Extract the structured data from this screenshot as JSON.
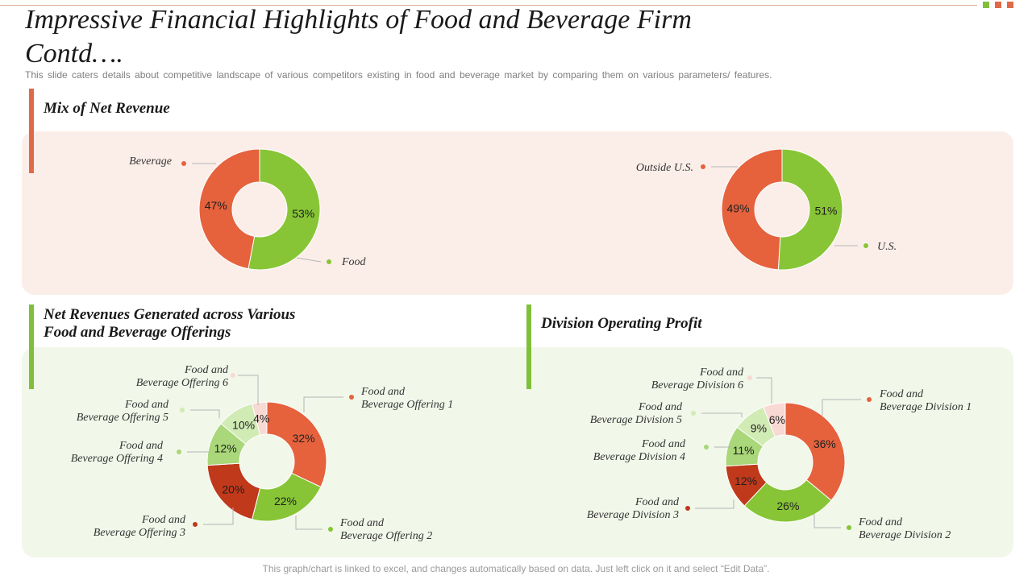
{
  "page": {
    "title": "Impressive Financial Highlights of Food and Beverage Firm Contd….",
    "subtitle": "This slide caters details about competitive landscape of various competitors existing in food and beverage  market by comparing them on various  parameters/ features.",
    "footer": "This graph/chart is linked to excel,  and changes automatically based on data. Just left click on it and select “Edit Data”."
  },
  "sections": {
    "mix": {
      "title": "Mix of Net Revenue"
    },
    "offerings": {
      "title_line1": "Net Revenues Generated across Various",
      "title_line2": "Food and Beverage Offerings"
    },
    "division": {
      "title": "Division Operating Profit"
    }
  },
  "colors": {
    "orange": "#e5623d",
    "green": "#87c536",
    "dark_red": "#c0391b",
    "light_green": "#a9d77a",
    "pale_green": "#d1ebb4",
    "pale_pink": "#f8d9d3",
    "accent_orange": "#e06a48",
    "accent_green": "#7fbf3a",
    "top_panel": "#fbeee9",
    "bottom_panel": "#f1f7e9"
  },
  "chart_data": [
    {
      "type": "pie",
      "title": "Mix of Net Revenue",
      "labels": [
        "Food",
        "Beverage"
      ],
      "values": [
        53,
        47
      ],
      "value_labels": [
        "53%",
        "47%"
      ],
      "label_lines": [
        [
          "Food"
        ],
        [
          "Beverage"
        ]
      ],
      "colors": [
        "#87c536",
        "#e5623d"
      ]
    },
    {
      "type": "pie",
      "title": "Mix of Net Revenue",
      "labels": [
        "U.S.",
        "Outside U.S."
      ],
      "values": [
        51,
        49
      ],
      "value_labels": [
        "51%",
        "49%"
      ],
      "label_lines": [
        [
          "U.S."
        ],
        [
          "Outside U.S."
        ]
      ],
      "colors": [
        "#87c536",
        "#e5623d"
      ]
    },
    {
      "type": "pie",
      "title": "Net Revenues Generated across Various Food and Beverage Offerings",
      "labels": [
        "Food and Beverage Offering 1",
        "Food and Beverage Offering 2",
        "Food and Beverage Offering 3",
        "Food and Beverage Offering 4",
        "Food and Beverage Offering 5",
        "Food and Beverage Offering 6"
      ],
      "values": [
        32,
        22,
        20,
        12,
        10,
        4
      ],
      "value_labels": [
        "32%",
        "22%",
        "20%",
        "12%",
        "10%",
        "4%"
      ],
      "label_lines": [
        [
          "Food and",
          "Beverage Offering 1"
        ],
        [
          "Food and",
          "Beverage Offering 2"
        ],
        [
          "Food and",
          "Beverage Offering 3"
        ],
        [
          "Food and",
          "Beverage Offering 4"
        ],
        [
          "Food and",
          "Beverage Offering 5"
        ],
        [
          "Food and",
          "Beverage Offering 6"
        ]
      ],
      "colors": [
        "#e5623d",
        "#87c536",
        "#c0391b",
        "#a9d77a",
        "#d1ebb4",
        "#f8d9d3"
      ]
    },
    {
      "type": "pie",
      "title": "Division Operating Profit",
      "labels": [
        "Food and Beverage Division 1",
        "Food and Beverage Division 2",
        "Food and Beverage Division 3",
        "Food and Beverage Division 4",
        "Food and Beverage Division 5",
        "Food and Beverage Division 6"
      ],
      "values": [
        36,
        26,
        12,
        11,
        9,
        6
      ],
      "value_labels": [
        "36%",
        "26%",
        "12%",
        "11%",
        "9%",
        "6%"
      ],
      "label_lines": [
        [
          "Food and",
          "Beverage Division 1"
        ],
        [
          "Food and",
          "Beverage Division 2"
        ],
        [
          "Food and",
          "Beverage Division 3"
        ],
        [
          "Food and",
          "Beverage Division 4"
        ],
        [
          "Food and",
          "Beverage Division 5"
        ],
        [
          "Food and",
          "Beverage Division 6"
        ]
      ],
      "colors": [
        "#e5623d",
        "#87c536",
        "#c0391b",
        "#a9d77a",
        "#d1ebb4",
        "#f8d9d3"
      ]
    }
  ]
}
